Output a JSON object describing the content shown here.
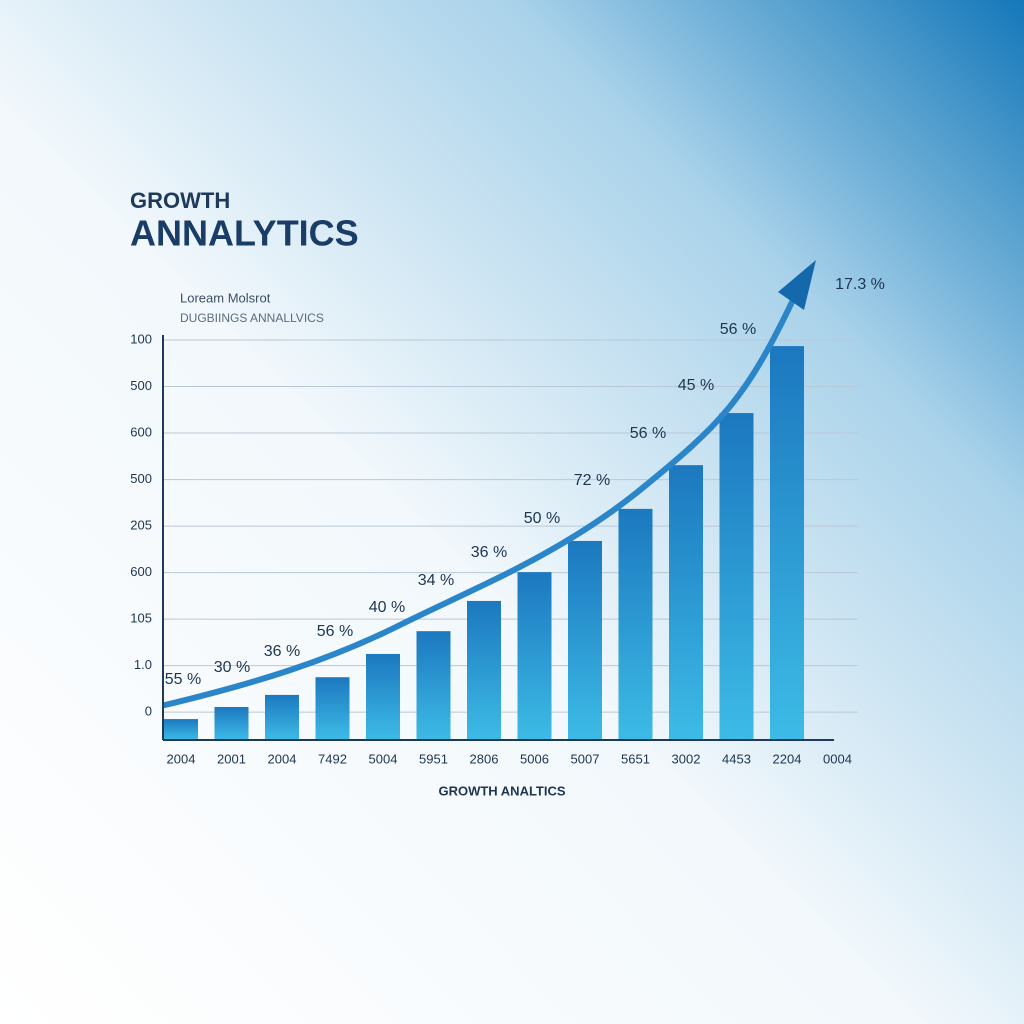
{
  "chart_data": {
    "type": "bar",
    "title": "GROWTH",
    "subtitle": "ANNALYTICS",
    "caption": [
      "Loream Molsrot",
      "DUGBIINGS ANNALLVICS"
    ],
    "x_label": "GROWTH ANALTICS",
    "categories": [
      "2004",
      "2001",
      "2004",
      "7492",
      "5004",
      "5951",
      "2806",
      "5006",
      "5007",
      "5651",
      "3002",
      "4453",
      "2204",
      "0004"
    ],
    "values": [
      -0.15,
      0.11,
      0.37,
      0.75,
      1.25,
      1.74,
      2.39,
      3.01,
      3.68,
      4.37,
      5.31,
      6.43,
      7.87,
      null
    ],
    "ylim": [
      -0.6,
      8.1
    ],
    "yticks": [
      0,
      {
        "value": 1,
        "label": "1.0"
      },
      {
        "value": 2,
        "label": "105"
      },
      {
        "value": 3,
        "label": "600"
      },
      {
        "value": 4,
        "label": "205"
      },
      {
        "value": 5,
        "label": "500"
      },
      {
        "value": 6,
        "label": "600"
      },
      {
        "value": 7,
        "label": "500"
      },
      {
        "value": 8,
        "label": "100"
      }
    ],
    "annotations": [
      "55 %",
      "30 %",
      "36 %",
      "56 %",
      "40 %",
      "34 %",
      "36 %",
      "50 %",
      "72 %",
      "56 %",
      "45 %",
      "56 %",
      "17.3 %"
    ],
    "grid": true,
    "colors": [
      "#1c78bf",
      "#3dbbe6"
    ]
  }
}
